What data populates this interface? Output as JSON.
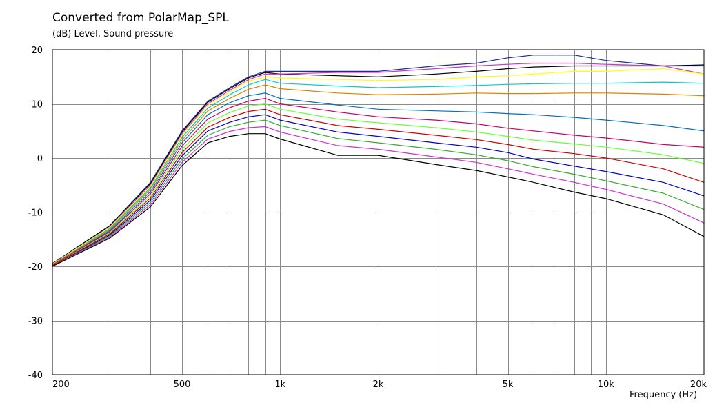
{
  "chart_data": {
    "type": "line",
    "title": "Converted from PolarMap_SPL",
    "ylabel": "(dB)  Level, Sound pressure",
    "xlabel": "Frequency  (Hz)",
    "x_scale": "log",
    "xlim": [
      200,
      20000
    ],
    "ylim": [
      -40,
      20
    ],
    "grid": true,
    "legend": "none",
    "y_ticks": [
      20,
      10,
      0,
      -10,
      -20,
      -30,
      -40
    ],
    "x_tick_labels": [
      {
        "value": 200,
        "label": "200"
      },
      {
        "value": 500,
        "label": "500"
      },
      {
        "value": 1000,
        "label": "1k"
      },
      {
        "value": 2000,
        "label": "2k"
      },
      {
        "value": 5000,
        "label": "5k"
      },
      {
        "value": 10000,
        "label": "10k"
      },
      {
        "value": 20000,
        "label": "20k"
      }
    ],
    "x_grid": [
      300,
      400,
      500,
      600,
      700,
      800,
      900,
      1000,
      2000,
      3000,
      4000,
      5000,
      6000,
      7000,
      8000,
      9000,
      10000
    ],
    "x": [
      200,
      300,
      400,
      500,
      600,
      700,
      800,
      900,
      1000,
      1500,
      2000,
      3000,
      4000,
      5000,
      6000,
      8000,
      10000,
      15000,
      20000
    ],
    "series": [
      {
        "color": "#1f2f8f",
        "values": [
          -19.5,
          -12.5,
          -4.5,
          5.0,
          10.5,
          13.0,
          15.0,
          16.0,
          16.0,
          16.0,
          16.0,
          17.0,
          17.5,
          18.5,
          19.0,
          19.0,
          18.0,
          17.0,
          17.0
        ]
      },
      {
        "color": "#000000",
        "values": [
          -19.5,
          -12.5,
          -4.7,
          4.8,
          10.3,
          12.8,
          14.8,
          15.8,
          15.5,
          15.2,
          15.0,
          15.5,
          16.0,
          16.5,
          16.8,
          17.0,
          17.0,
          17.0,
          17.2
        ]
      },
      {
        "color": "#cc33cc",
        "values": [
          -19.6,
          -12.7,
          -5.0,
          4.5,
          10.0,
          12.5,
          14.5,
          15.5,
          15.5,
          15.8,
          15.8,
          16.5,
          17.0,
          17.3,
          17.5,
          17.5,
          17.3,
          17.0,
          15.5
        ]
      },
      {
        "color": "#ffff00",
        "values": [
          -19.6,
          -12.8,
          -5.2,
          4.2,
          9.7,
          12.2,
          14.2,
          15.0,
          14.8,
          14.5,
          14.3,
          14.5,
          15.0,
          15.2,
          15.5,
          16.0,
          16.0,
          16.5,
          15.5
        ]
      },
      {
        "color": "#00cccc",
        "values": [
          -19.7,
          -13.0,
          -5.5,
          3.8,
          9.2,
          11.7,
          13.5,
          14.5,
          13.8,
          13.3,
          13.0,
          13.2,
          13.4,
          13.6,
          13.7,
          13.8,
          13.8,
          14.0,
          13.8
        ]
      },
      {
        "color": "#e08000",
        "values": [
          -19.7,
          -13.2,
          -5.8,
          3.3,
          8.7,
          11.0,
          12.7,
          13.5,
          12.8,
          12.0,
          11.7,
          11.8,
          12.0,
          11.9,
          11.9,
          12.0,
          12.0,
          11.8,
          11.5
        ]
      },
      {
        "color": "#0070c0",
        "values": [
          -19.8,
          -13.4,
          -6.2,
          2.8,
          8.0,
          10.2,
          11.5,
          12.0,
          11.0,
          9.8,
          9.0,
          8.7,
          8.5,
          8.2,
          8.0,
          7.5,
          7.0,
          6.0,
          5.0
        ]
      },
      {
        "color": "#cc0066",
        "values": [
          -19.8,
          -13.6,
          -6.6,
          2.2,
          7.2,
          9.3,
          10.5,
          11.0,
          10.0,
          8.5,
          7.6,
          7.0,
          6.3,
          5.5,
          5.0,
          4.2,
          3.7,
          2.5,
          2.0
        ]
      },
      {
        "color": "#66ff33",
        "values": [
          -19.9,
          -13.8,
          -7.0,
          1.6,
          6.5,
          8.4,
          9.6,
          10.0,
          9.0,
          7.2,
          6.5,
          5.6,
          4.8,
          4.0,
          3.3,
          2.6,
          2.0,
          0.6,
          -1.0
        ]
      },
      {
        "color": "#cc0000",
        "values": [
          -19.9,
          -14.0,
          -7.4,
          1.0,
          5.7,
          7.5,
          8.6,
          9.0,
          8.0,
          6.0,
          5.3,
          4.2,
          3.4,
          2.5,
          1.6,
          0.8,
          0.0,
          -2.0,
          -4.5
        ]
      },
      {
        "color": "#0000cc",
        "values": [
          -20.0,
          -14.2,
          -7.8,
          0.4,
          5.0,
          6.6,
          7.6,
          8.0,
          7.0,
          4.8,
          4.0,
          2.8,
          2.0,
          1.0,
          -0.2,
          -1.5,
          -2.5,
          -4.5,
          -7.0
        ]
      },
      {
        "color": "#33aa33",
        "values": [
          -20.0,
          -14.4,
          -8.2,
          -0.2,
          4.2,
          5.8,
          6.6,
          7.0,
          6.0,
          3.6,
          2.8,
          1.6,
          0.6,
          -0.5,
          -1.6,
          -3.0,
          -4.2,
          -6.5,
          -9.5
        ]
      },
      {
        "color": "#cc33cc",
        "values": [
          -20.0,
          -14.6,
          -8.6,
          -0.8,
          3.5,
          4.9,
          5.6,
          5.8,
          4.8,
          2.3,
          1.6,
          0.2,
          -0.8,
          -2.0,
          -3.0,
          -4.5,
          -5.8,
          -8.5,
          -12.0
        ]
      },
      {
        "color": "#000000",
        "values": [
          -20.0,
          -14.8,
          -9.0,
          -1.4,
          2.8,
          4.0,
          4.5,
          4.5,
          3.5,
          0.5,
          0.5,
          -1.2,
          -2.3,
          -3.5,
          -4.5,
          -6.3,
          -7.5,
          -10.5,
          -14.5
        ]
      }
    ]
  }
}
